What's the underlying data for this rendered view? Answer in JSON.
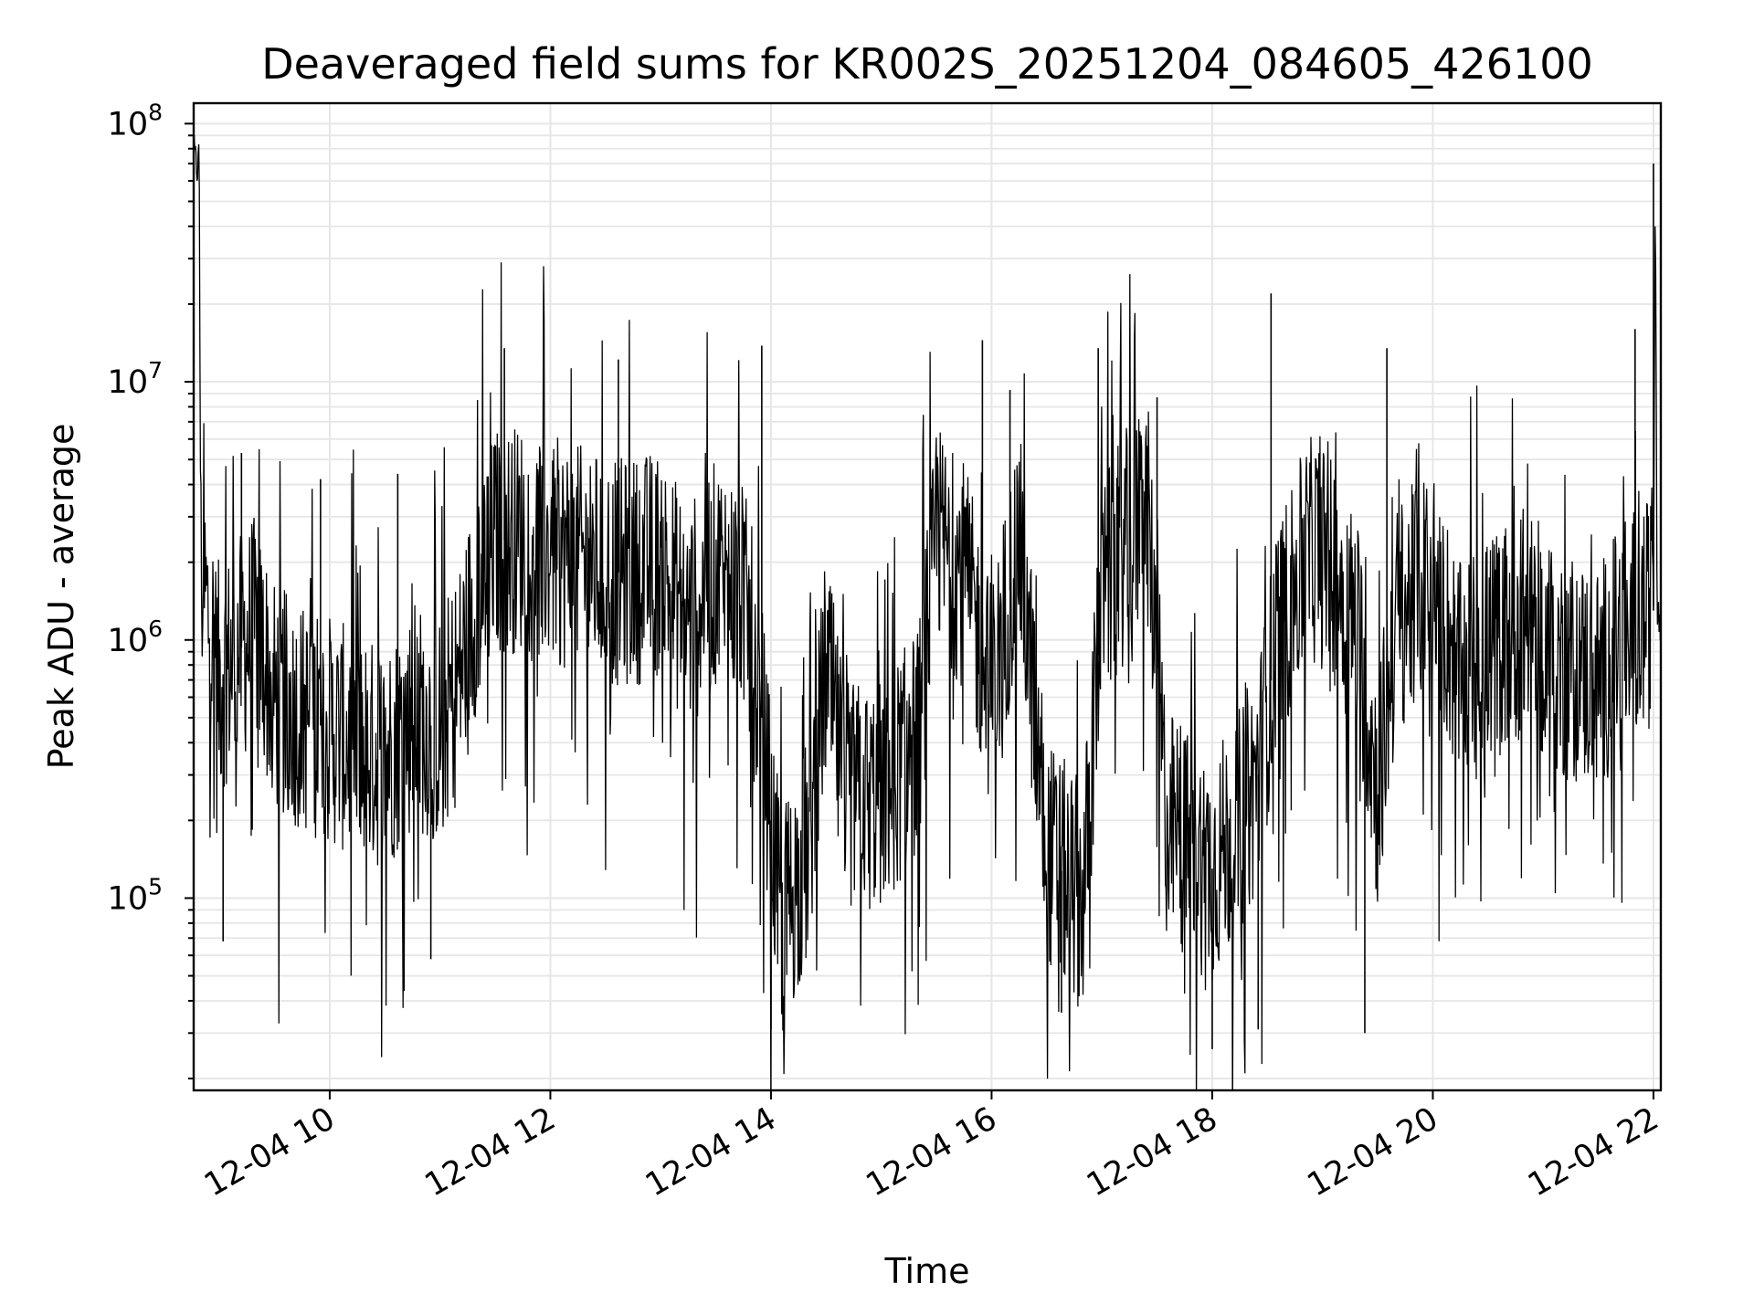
{
  "chart_data": {
    "type": "line",
    "title": "Deaveraged field sums for KR002S_20251204_084605_426100",
    "xlabel": "Time",
    "ylabel": "Peak ADU - average",
    "x_scale": "time",
    "y_scale": "log",
    "xlim": [
      "2025-12-04 08:46",
      "2025-12-04 22:04"
    ],
    "ylim": [
      18000,
      120000000
    ],
    "grid": true,
    "x_ticks": [
      {
        "value": "2025-12-04 10:00",
        "label": "12-04 10"
      },
      {
        "value": "2025-12-04 12:00",
        "label": "12-04 12"
      },
      {
        "value": "2025-12-04 14:00",
        "label": "12-04 14"
      },
      {
        "value": "2025-12-04 16:00",
        "label": "12-04 16"
      },
      {
        "value": "2025-12-04 18:00",
        "label": "12-04 18"
      },
      {
        "value": "2025-12-04 20:00",
        "label": "12-04 20"
      },
      {
        "value": "2025-12-04 22:00",
        "label": "12-04 22"
      }
    ],
    "y_ticks": [
      {
        "value": 100000,
        "base": "10",
        "exp": "5"
      },
      {
        "value": 1000000,
        "base": "10",
        "exp": "6"
      },
      {
        "value": 10000000,
        "base": "10",
        "exp": "7"
      },
      {
        "value": 100000000,
        "base": "10",
        "exp": "8"
      }
    ],
    "series": [
      {
        "color": "#000000",
        "points": [
          [
            "2025-12-04 08:46",
            80000000
          ],
          [
            "2025-12-04 08:48",
            65000000
          ],
          [
            "2025-12-04 08:49",
            78000000
          ],
          [
            "2025-12-04 08:50",
            1800000
          ],
          [
            "2025-12-04 09:00",
            700000
          ],
          [
            "2025-12-04 09:10",
            900000
          ],
          [
            "2025-12-04 09:20",
            1100000
          ],
          [
            "2025-12-04 09:30",
            600000
          ],
          [
            "2025-12-04 09:45",
            500000
          ],
          [
            "2025-12-04 10:00",
            450000
          ],
          [
            "2025-12-04 10:15",
            380000
          ],
          [
            "2025-12-04 10:30",
            350000
          ],
          [
            "2025-12-04 10:45",
            500000
          ],
          [
            "2025-12-04 11:00",
            450000
          ],
          [
            "2025-12-04 11:10",
            700000
          ],
          [
            "2025-12-04 11:20",
            1500000
          ],
          [
            "2025-12-04 11:30",
            2400000
          ],
          [
            "2025-12-04 11:45",
            2500000
          ],
          [
            "2025-12-04 12:00",
            2200000
          ],
          [
            "2025-12-04 12:20",
            2000000
          ],
          [
            "2025-12-04 12:40",
            1800000
          ],
          [
            "2025-12-04 13:00",
            2000000
          ],
          [
            "2025-12-04 13:15",
            1200000
          ],
          [
            "2025-12-04 13:30",
            1800000
          ],
          [
            "2025-12-04 13:45",
            1500000
          ],
          [
            "2025-12-04 13:55",
            500000
          ],
          [
            "2025-12-04 14:05",
            80000
          ],
          [
            "2025-12-04 14:20",
            150000
          ],
          [
            "2025-12-04 14:30",
            800000
          ],
          [
            "2025-12-04 14:40",
            250000
          ],
          [
            "2025-12-04 15:00",
            250000
          ],
          [
            "2025-12-04 15:20",
            400000
          ],
          [
            "2025-12-04 15:30",
            2500000
          ],
          [
            "2025-12-04 15:45",
            1800000
          ],
          [
            "2025-12-04 16:00",
            600000
          ],
          [
            "2025-12-04 16:15",
            2500000
          ],
          [
            "2025-12-04 16:30",
            150000
          ],
          [
            "2025-12-04 16:50",
            100000
          ],
          [
            "2025-12-04 17:00",
            1500000
          ],
          [
            "2025-12-04 17:15",
            2500000
          ],
          [
            "2025-12-04 17:25",
            3000000
          ],
          [
            "2025-12-04 17:35",
            200000
          ],
          [
            "2025-12-04 17:50",
            150000
          ],
          [
            "2025-12-04 18:00",
            130000
          ],
          [
            "2025-12-04 18:15",
            200000
          ],
          [
            "2025-12-04 18:25",
            300000
          ],
          [
            "2025-12-04 18:35",
            1000000
          ],
          [
            "2025-12-04 18:50",
            2000000
          ],
          [
            "2025-12-04 19:00",
            2500000
          ],
          [
            "2025-12-04 19:20",
            1000000
          ],
          [
            "2025-12-04 19:30",
            250000
          ],
          [
            "2025-12-04 19:40",
            1200000
          ],
          [
            "2025-12-04 20:00",
            1800000
          ],
          [
            "2025-12-04 20:15",
            700000
          ],
          [
            "2025-12-04 20:30",
            900000
          ],
          [
            "2025-12-04 20:50",
            1200000
          ],
          [
            "2025-12-04 21:10",
            800000
          ],
          [
            "2025-12-04 21:30",
            700000
          ],
          [
            "2025-12-04 21:45",
            1100000
          ],
          [
            "2025-12-04 22:00",
            1300000
          ],
          [
            "2025-12-04 22:01",
            60000000
          ],
          [
            "2025-12-04 22:02",
            1200000
          ],
          [
            "2025-12-04 22:04",
            1300000
          ]
        ],
        "spikes": [
          [
            "2025-12-04 09:12",
            5300000
          ],
          [
            "2025-12-04 09:55",
            4200000
          ],
          [
            "2025-12-04 10:37",
            4400000
          ],
          [
            "2025-12-04 11:35",
            13500000
          ],
          [
            "2025-12-04 12:37",
            12200000
          ],
          [
            "2025-12-04 13:55",
            13800000
          ],
          [
            "2025-12-04 15:55",
            14500000
          ],
          [
            "2025-12-04 16:10",
            9300000
          ],
          [
            "2025-12-04 16:58",
            13500000
          ],
          [
            "2025-12-04 17:30",
            8700000
          ],
          [
            "2025-12-04 18:32",
            22000000
          ],
          [
            "2025-12-04 19:35",
            13500000
          ],
          [
            "2025-12-04 21:50",
            16000000
          ],
          [
            "2025-12-04 22:00",
            70000000
          ],
          [
            "2025-12-04 09:02",
            68000
          ],
          [
            "2025-12-04 10:55",
            58000
          ],
          [
            "2025-12-04 14:00",
            31000
          ],
          [
            "2025-12-04 16:38",
            36000
          ],
          [
            "2025-12-04 18:00",
            26000
          ],
          [
            "2025-12-04 19:23",
            30000
          ],
          [
            "2025-12-04 18:25",
            31000
          ]
        ]
      }
    ]
  }
}
